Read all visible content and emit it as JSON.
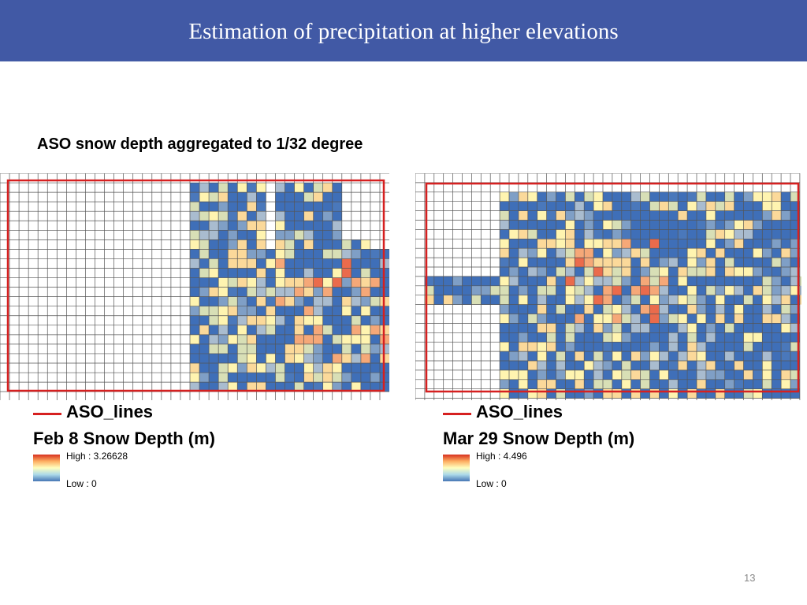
{
  "header": {
    "title": "Estimation of precipitation at higher elevations"
  },
  "subtitle": "ASO snow depth aggregated to 1/32 degree",
  "maps": [
    {
      "legend_line": "ASO_lines",
      "legend_title": "Feb 8 Snow Depth (m)",
      "high_label": "High : 3.26628",
      "low_label": "Low : 0"
    },
    {
      "legend_line": "ASO_lines",
      "legend_title": "Mar 29 Snow Depth (m)",
      "high_label": "High : 4.496",
      "low_label": "Low : 0"
    }
  ],
  "page_number": "13"
}
